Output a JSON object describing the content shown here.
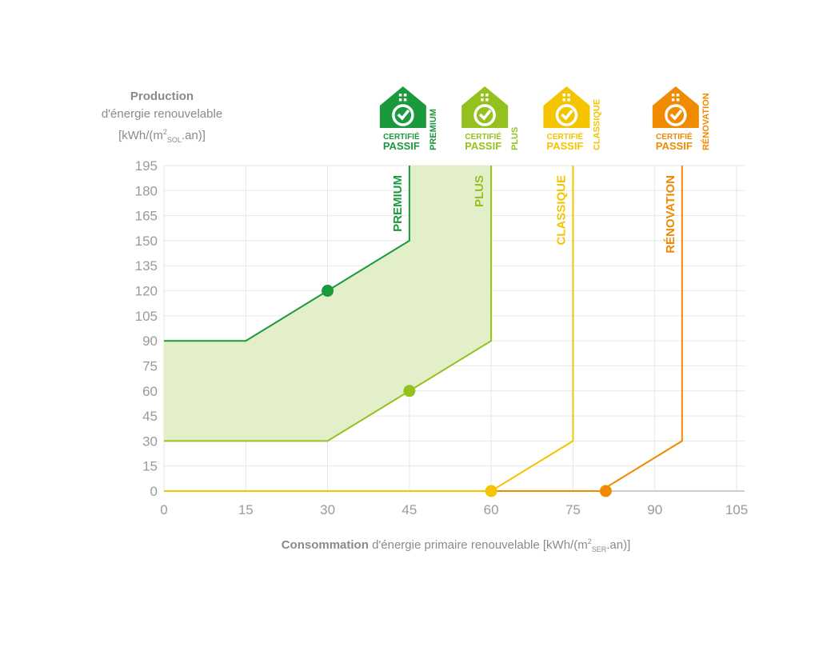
{
  "chart_data": {
    "type": "line",
    "y_axis_label": {
      "title": "Production",
      "line2": "d'énergie renouvelable",
      "unit_pre": "[kWh/(m",
      "unit_sup": "2",
      "unit_sub": "SOL",
      "unit_post": ".an)]"
    },
    "x_axis_label": {
      "title": "Consommation",
      "rest": "d'énergie primaire renouvelable",
      "unit_pre": "[kWh/(m",
      "unit_sup": "2",
      "unit_sub": "SER",
      "unit_post": ".an)]"
    },
    "xlim": [
      0,
      105
    ],
    "ylim": [
      0,
      195
    ],
    "x_ticks": [
      0,
      15,
      30,
      45,
      60,
      75,
      90,
      105
    ],
    "y_ticks": [
      0,
      15,
      30,
      45,
      60,
      75,
      90,
      105,
      120,
      135,
      150,
      165,
      180,
      195
    ],
    "grid": true,
    "shaded_region": {
      "color": "#e3efc8",
      "points": [
        [
          0,
          90
        ],
        [
          15,
          90
        ],
        [
          45,
          150
        ],
        [
          45,
          195
        ],
        [
          60,
          195
        ],
        [
          60,
          90
        ],
        [
          45,
          60
        ],
        [
          30,
          30
        ],
        [
          0,
          30
        ]
      ]
    },
    "series": [
      {
        "name": "PREMIUM",
        "color": "#1a9a3c",
        "points": [
          [
            0,
            90
          ],
          [
            15,
            90
          ],
          [
            45,
            150
          ],
          [
            45,
            195
          ]
        ],
        "marker": [
          30,
          120
        ]
      },
      {
        "name": "PLUS",
        "color": "#95c11f",
        "points": [
          [
            0,
            30
          ],
          [
            30,
            30
          ],
          [
            60,
            90
          ],
          [
            60,
            195
          ]
        ],
        "marker": [
          45,
          60
        ]
      },
      {
        "name": "CLASSIQUE",
        "color": "#f4c400",
        "points": [
          [
            0,
            0
          ],
          [
            60,
            0
          ],
          [
            75,
            30
          ],
          [
            75,
            195
          ]
        ],
        "marker": [
          60,
          0
        ]
      },
      {
        "name": "RÉNOVATION",
        "color": "#f08a00",
        "points": [
          [
            60,
            0
          ],
          [
            80,
            0
          ],
          [
            95,
            30
          ],
          [
            95,
            195
          ]
        ],
        "marker": [
          81,
          0
        ]
      }
    ],
    "badges": [
      {
        "line1": "CERTIFIÉ",
        "line2": "PASSIF",
        "level": "PREMIUM",
        "color": "#1a9a3c",
        "x": 45
      },
      {
        "line1": "CERTIFIÉ",
        "line2": "PASSIF",
        "level": "PLUS",
        "color": "#95c11f",
        "x": 60
      },
      {
        "line1": "CERTIFIÉ",
        "line2": "PASSIF",
        "level": "CLASSIQUE",
        "color": "#f4c400",
        "x": 75
      },
      {
        "line1": "CERTIFIÉ",
        "line2": "PASSIF",
        "level": "RÉNOVATION",
        "color": "#f08a00",
        "x": 95
      }
    ]
  },
  "colors": {
    "grid": "#e6e6e6",
    "axis": "#bdbdbd",
    "tick_text": "#9a9a9a"
  }
}
